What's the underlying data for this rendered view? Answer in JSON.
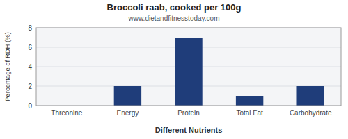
{
  "chart_data": {
    "type": "bar",
    "title": "Broccoli raab, cooked per 100g",
    "subtitle": "www.dietandfitnesstoday.com",
    "xlabel": "Different Nutrients",
    "ylabel": "Percentage of RDH (%)",
    "categories": [
      "Threonine",
      "Energy",
      "Protein",
      "Total Fat",
      "Carbohydrate"
    ],
    "values": [
      0,
      2,
      7,
      1,
      2
    ],
    "color": "#1f3d7a",
    "ylim": [
      0,
      8
    ],
    "yticks": [
      0,
      2,
      4,
      6,
      8
    ],
    "grid": true
  }
}
